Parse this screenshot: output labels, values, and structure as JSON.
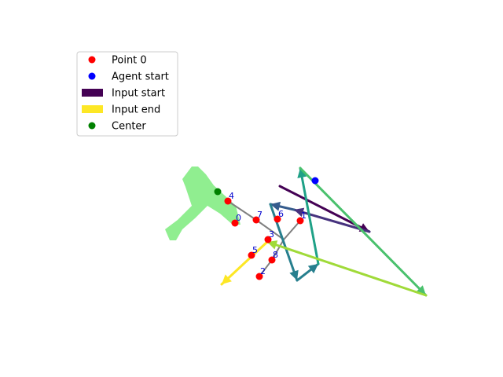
{
  "legend": {
    "items": [
      {
        "label": "Point 0",
        "marker": "dot",
        "color": "#ff0000"
      },
      {
        "label": "Agent start",
        "marker": "dot",
        "color": "#0000ff"
      },
      {
        "label": "Input start",
        "marker": "patch",
        "color": "#440154"
      },
      {
        "label": "Input end",
        "marker": "patch",
        "color": "#fde725"
      },
      {
        "label": "Center",
        "marker": "dot",
        "color": "#008000"
      }
    ]
  },
  "colors": {
    "region_fill": "#90ee90",
    "connector": "#808080",
    "point": "#ff0000",
    "label_text": "#0000cd",
    "agent": "#0000ff",
    "center": "#008000"
  },
  "points": [
    {
      "id": "0"
    },
    {
      "id": "1"
    },
    {
      "id": "2"
    },
    {
      "id": "3"
    },
    {
      "id": "4"
    },
    {
      "id": "5"
    },
    {
      "id": "6"
    },
    {
      "id": "7"
    },
    {
      "id": "8"
    }
  ],
  "arrow_colors": [
    "#440154",
    "#46327e",
    "#365c8d",
    "#277f8e",
    "#1fa187",
    "#4ac16d",
    "#a0da39",
    "#fde725"
  ]
}
